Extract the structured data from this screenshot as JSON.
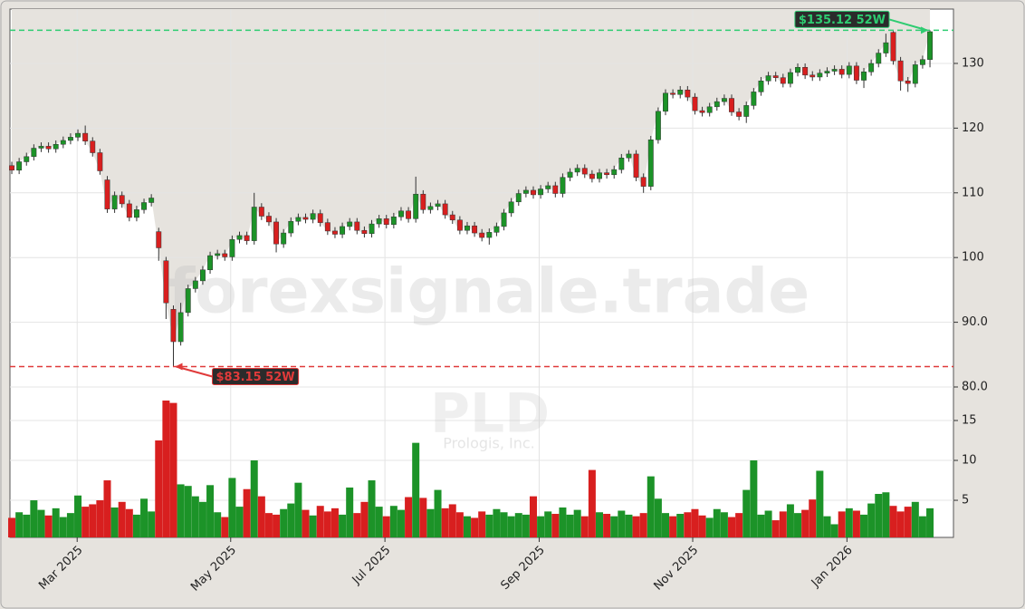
{
  "chart_data": {
    "type": "candlestick",
    "title": "PLD",
    "subtitle": "Prologis, Inc.",
    "watermark": "forexsignale.trade",
    "open": [
      114.2,
      113.5,
      114.8,
      115.6,
      116.9,
      117.2,
      116.8,
      117.5,
      118.1,
      118.6,
      119.2,
      118.0,
      116.2,
      112.0,
      107.5,
      109.6,
      108.3,
      106.2,
      107.4,
      108.5,
      104.0,
      99.5,
      92.0,
      87.0,
      91.5,
      95.2,
      96.4,
      98.1,
      100.3,
      100.6,
      100.1,
      102.8,
      103.4,
      102.6,
      107.8,
      106.4,
      105.5,
      102.1,
      103.8,
      105.6,
      106.2,
      105.9,
      106.8,
      105.4,
      104.1,
      103.6,
      104.8,
      105.5,
      104.2,
      103.7,
      105.2,
      106.0,
      105.1,
      106.3,
      107.2,
      106.0,
      109.8,
      107.4,
      107.9,
      108.3,
      106.6,
      105.8,
      104.2,
      104.9,
      103.8,
      103.1,
      103.9,
      104.8,
      106.9,
      108.6,
      109.9,
      110.4,
      109.7,
      110.6,
      111.1,
      109.9,
      112.4,
      113.2,
      113.8,
      112.9,
      112.2,
      113.1,
      112.8,
      113.6,
      115.4,
      116.0,
      112.4,
      111.0,
      118.2,
      122.6,
      125.4,
      125.2,
      125.9,
      124.8,
      122.7,
      122.4,
      123.3,
      124.1,
      124.6,
      122.5,
      121.8,
      123.5,
      125.6,
      127.3,
      128.1,
      127.8,
      126.9,
      128.6,
      129.4,
      128.2,
      127.9,
      128.5,
      128.8,
      129.1,
      128.3,
      129.6,
      127.4,
      128.7,
      130.0,
      131.6,
      134.8,
      130.4,
      127.3,
      126.9,
      129.8,
      130.6
    ],
    "high": [
      114.8,
      115.4,
      116.2,
      117.5,
      117.8,
      117.8,
      118.1,
      118.7,
      119.2,
      119.8,
      120.4,
      118.6,
      116.8,
      112.6,
      110.2,
      110.2,
      108.9,
      108.0,
      109.1,
      109.8,
      104.6,
      100.1,
      92.6,
      93.0,
      95.8,
      97.0,
      98.7,
      100.9,
      101.2,
      101.2,
      103.4,
      104.0,
      104.0,
      110.0,
      108.4,
      107.0,
      106.1,
      104.4,
      106.2,
      106.8,
      106.8,
      107.4,
      107.4,
      106.0,
      104.7,
      105.4,
      106.1,
      106.1,
      104.8,
      105.8,
      106.6,
      106.6,
      106.9,
      107.8,
      107.8,
      112.5,
      110.4,
      108.5,
      108.9,
      108.9,
      107.2,
      106.4,
      105.5,
      105.5,
      104.4,
      104.5,
      105.4,
      107.5,
      109.2,
      110.5,
      111.0,
      111.0,
      111.2,
      111.7,
      111.7,
      113.0,
      113.8,
      114.4,
      114.4,
      113.5,
      113.7,
      113.7,
      114.2,
      116.0,
      116.6,
      116.6,
      113.0,
      118.8,
      123.2,
      126.0,
      126.0,
      126.5,
      126.5,
      125.4,
      123.3,
      123.9,
      124.7,
      125.2,
      125.2,
      123.1,
      124.1,
      126.2,
      127.9,
      128.7,
      128.7,
      128.4,
      129.2,
      130.0,
      130.0,
      128.8,
      129.1,
      129.4,
      129.7,
      129.7,
      130.2,
      130.2,
      129.3,
      130.6,
      132.2,
      134.6,
      135.0,
      131.0,
      127.9,
      130.4,
      131.2,
      135.12
    ],
    "low": [
      112.9,
      112.9,
      114.2,
      115.0,
      116.3,
      116.2,
      116.2,
      116.9,
      117.5,
      118.0,
      117.4,
      115.6,
      112.8,
      106.9,
      106.9,
      107.7,
      105.6,
      105.6,
      106.8,
      107.9,
      99.5,
      90.5,
      83.15,
      86.4,
      90.9,
      94.6,
      95.8,
      97.5,
      99.7,
      99.5,
      99.5,
      102.2,
      102.0,
      102.0,
      105.8,
      104.9,
      100.8,
      101.5,
      103.2,
      105.0,
      105.3,
      105.3,
      104.8,
      103.5,
      103.0,
      103.0,
      104.2,
      103.6,
      103.1,
      103.1,
      104.6,
      104.5,
      104.5,
      105.7,
      105.4,
      105.4,
      106.8,
      106.8,
      107.3,
      106.0,
      105.2,
      103.6,
      103.6,
      103.2,
      102.5,
      102.0,
      103.3,
      104.2,
      106.3,
      108.0,
      109.3,
      109.1,
      109.1,
      110.0,
      109.3,
      109.3,
      111.8,
      112.6,
      112.3,
      111.6,
      111.6,
      112.2,
      112.2,
      113.0,
      114.8,
      111.8,
      110.0,
      110.4,
      117.6,
      122.0,
      124.6,
      124.6,
      124.2,
      122.1,
      121.8,
      121.8,
      122.7,
      123.5,
      121.9,
      121.2,
      120.8,
      122.9,
      125.0,
      126.7,
      127.2,
      126.3,
      126.3,
      128.0,
      127.6,
      127.3,
      127.3,
      127.9,
      128.2,
      127.7,
      127.7,
      126.8,
      126.2,
      128.1,
      129.4,
      131.0,
      129.8,
      125.8,
      125.6,
      126.3,
      129.2,
      129.4
    ],
    "close": [
      113.5,
      114.8,
      115.6,
      116.9,
      117.2,
      116.8,
      117.5,
      118.1,
      118.6,
      119.2,
      118.0,
      116.2,
      113.4,
      107.5,
      109.6,
      108.3,
      106.2,
      107.4,
      108.5,
      109.2,
      101.5,
      93.0,
      87.0,
      91.5,
      95.2,
      96.4,
      98.1,
      100.3,
      100.6,
      100.1,
      102.8,
      103.4,
      102.6,
      107.8,
      106.4,
      105.5,
      102.1,
      103.8,
      105.6,
      106.2,
      105.9,
      106.8,
      105.4,
      104.1,
      103.6,
      104.8,
      105.5,
      104.2,
      103.7,
      105.2,
      106.0,
      105.1,
      106.3,
      107.2,
      106.0,
      109.8,
      107.4,
      107.9,
      108.3,
      106.6,
      105.8,
      104.2,
      104.9,
      103.8,
      103.1,
      103.9,
      104.8,
      106.9,
      108.6,
      109.9,
      110.4,
      109.7,
      110.6,
      111.1,
      109.9,
      112.4,
      113.2,
      113.8,
      112.9,
      112.2,
      113.1,
      112.8,
      113.6,
      115.4,
      116.0,
      112.4,
      111.0,
      118.2,
      122.6,
      125.4,
      125.2,
      125.9,
      124.8,
      122.7,
      122.4,
      123.3,
      124.1,
      124.6,
      122.5,
      121.8,
      123.5,
      125.6,
      127.3,
      128.1,
      127.8,
      126.9,
      128.6,
      129.4,
      128.2,
      127.9,
      128.5,
      128.8,
      129.1,
      128.3,
      129.6,
      127.4,
      128.7,
      130.0,
      131.6,
      133.2,
      130.4,
      127.3,
      126.9,
      129.8,
      130.6,
      134.9
    ],
    "volume": [
      2.8,
      3.5,
      3.2,
      5.0,
      3.8,
      3.1,
      4.0,
      2.9,
      3.4,
      5.6,
      4.2,
      4.5,
      5.0,
      7.5,
      4.1,
      4.8,
      3.9,
      3.2,
      5.2,
      3.6,
      12.5,
      17.5,
      17.2,
      7.0,
      6.8,
      5.5,
      4.8,
      6.9,
      3.5,
      2.9,
      7.8,
      4.2,
      6.4,
      10.0,
      5.5,
      3.4,
      3.2,
      3.9,
      4.6,
      7.2,
      3.8,
      3.1,
      4.3,
      3.6,
      4.0,
      3.2,
      6.6,
      3.4,
      4.8,
      7.5,
      4.2,
      3.0,
      4.3,
      3.8,
      5.4,
      12.2,
      5.3,
      3.9,
      6.3,
      4.0,
      4.5,
      3.5,
      3.0,
      2.8,
      3.6,
      3.2,
      3.9,
      3.5,
      3.0,
      3.4,
      3.2,
      5.5,
      3.0,
      3.6,
      3.3,
      4.1,
      3.2,
      3.8,
      3.0,
      8.8,
      3.5,
      3.3,
      3.0,
      3.7,
      3.2,
      3.0,
      3.4,
      8.0,
      5.2,
      3.4,
      3.0,
      3.3,
      3.5,
      3.9,
      3.1,
      2.8,
      3.9,
      3.5,
      2.9,
      3.4,
      6.3,
      10.0,
      3.2,
      3.7,
      2.5,
      3.6,
      4.5,
      3.4,
      3.8,
      5.1,
      8.7,
      3.0,
      2.0,
      3.6,
      4.0,
      3.7,
      3.2,
      4.6,
      5.8,
      6.0,
      4.3,
      3.6,
      4.2,
      4.8,
      3.0,
      4.0
    ],
    "up_color": "#1c9328",
    "down_color": "#d81f1f",
    "xlim": [
      -0.25,
      128.2
    ],
    "xticks": [
      {
        "value": 8.9,
        "label": "Mar 2025"
      },
      {
        "value": 29.8,
        "label": "May 2025"
      },
      {
        "value": 50.8,
        "label": "Jul 2025"
      },
      {
        "value": 71.8,
        "label": "Sep 2025"
      },
      {
        "value": 92.7,
        "label": "Nov 2025"
      },
      {
        "value": 113.7,
        "label": "Jan 2026"
      }
    ],
    "ylim": [
      80,
      138.4
    ],
    "yticks": [
      {
        "value": 80,
        "label": "80.0"
      },
      {
        "value": 90,
        "label": "90.0"
      },
      100,
      110,
      120,
      130
    ],
    "volume_ylim": [
      0.35,
      19.2
    ],
    "volume_yticks": [
      5,
      10,
      15
    ],
    "grid": true,
    "annotations": [
      {
        "value": 135.12,
        "label": "$135.12 52W",
        "color": "#2ecc71"
      },
      {
        "value": 83.15,
        "label": "$83.15 52W",
        "color": "#e03a3a"
      }
    ]
  }
}
